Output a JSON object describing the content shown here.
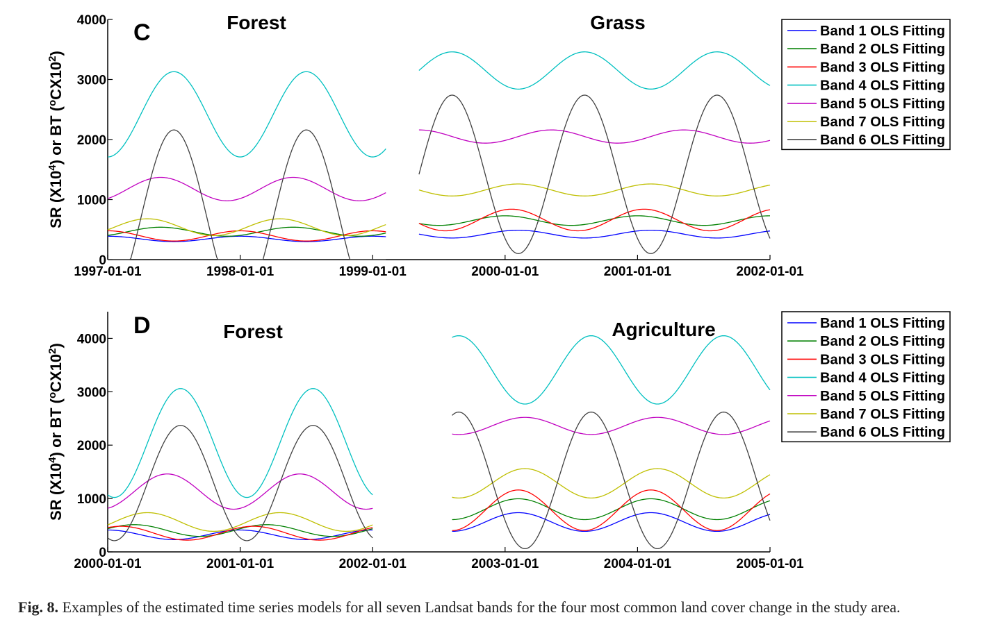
{
  "chart_data": [
    {
      "type": "line",
      "panel_label": "C",
      "ylabel_parts": [
        "SR (X10",
        "4",
        ") or BT (",
        "o",
        "CX10",
        "2",
        ")"
      ],
      "ylim": [
        0,
        4000
      ],
      "yticks": [
        0,
        1000,
        2000,
        3000,
        4000
      ],
      "xtick_labels": [
        "1997-01-01",
        "1998-01-01",
        "1999-01-01",
        "2000-01-01",
        "2001-01-01",
        "2002-01-01"
      ],
      "xlim": [
        1997.0,
        2002.0
      ],
      "segment_titles": [
        "Forest",
        "Grass"
      ],
      "legend": {
        "placement": "outside-right-top",
        "entries": [
          "Band 1 OLS Fitting",
          "Band 2 OLS Fitting",
          "Band 3 OLS Fitting",
          "Band 4 OLS Fitting",
          "Band 5 OLS Fitting",
          "Band 7 OLS Fitting",
          "Band 6 OLS Fitting"
        ]
      },
      "segments": [
        {
          "x_range": [
            1997.0,
            1999.1
          ],
          "series": [
            {
              "name": "Band 1 OLS Fitting",
              "color": "#0000ff",
              "mean": 345,
              "amp": 45,
              "phase": 1997.0
            },
            {
              "name": "Band 2 OLS Fitting",
              "color": "#008000",
              "mean": 465,
              "amp": 75,
              "phase": 1997.4
            },
            {
              "name": "Band 3 OLS Fitting",
              "color": "#ff0000",
              "mean": 395,
              "amp": 85,
              "phase": 1997.0
            },
            {
              "name": "Band 4 OLS Fitting",
              "color": "#00c0c0",
              "mean": 2420,
              "amp": 710,
              "phase": 1997.5
            },
            {
              "name": "Band 5 OLS Fitting",
              "color": "#c000c0",
              "mean": 1175,
              "amp": 195,
              "phase": 1997.4
            },
            {
              "name": "Band 7 OLS Fitting",
              "color": "#bfbf00",
              "mean": 540,
              "amp": 140,
              "phase": 1997.3
            },
            {
              "name": "Band 6 OLS Fitting",
              "color": "#404040",
              "mean": 690,
              "amp": 1470,
              "phase": 1997.5
            }
          ]
        },
        {
          "x_range": [
            1999.35,
            2002.0
          ],
          "series": [
            {
              "name": "Band 1 OLS Fitting",
              "color": "#0000ff",
              "mean": 425,
              "amp": 65,
              "phase": 2000.1
            },
            {
              "name": "Band 2 OLS Fitting",
              "color": "#008000",
              "mean": 650,
              "amp": 80,
              "phase": 2000.0
            },
            {
              "name": "Band 3 OLS Fitting",
              "color": "#ff0000",
              "mean": 660,
              "amp": 180,
              "phase": 2000.05
            },
            {
              "name": "Band 4 OLS Fitting",
              "color": "#00c0c0",
              "mean": 3150,
              "amp": 310,
              "phase": 1999.6
            },
            {
              "name": "Band 5 OLS Fitting",
              "color": "#c000c0",
              "mean": 2050,
              "amp": 110,
              "phase": 1999.35
            },
            {
              "name": "Band 7 OLS Fitting",
              "color": "#bfbf00",
              "mean": 1160,
              "amp": 100,
              "phase": 2000.1
            },
            {
              "name": "Band 6 OLS Fitting",
              "color": "#404040",
              "mean": 1420,
              "amp": 1320,
              "phase": 1999.6
            }
          ]
        }
      ]
    },
    {
      "type": "line",
      "panel_label": "D",
      "ylabel_parts": [
        "SR (X10",
        "4",
        ") or BT (",
        "o",
        "CX10",
        "2",
        ")"
      ],
      "ylim": [
        0,
        4500
      ],
      "yticks": [
        0,
        1000,
        2000,
        3000,
        4000
      ],
      "xtick_labels": [
        "2000-01-01",
        "2001-01-01",
        "2002-01-01",
        "2003-01-01",
        "2004-01-01",
        "2005-01-01"
      ],
      "xlim": [
        2000.0,
        2005.0
      ],
      "segment_titles": [
        "Forest",
        "Agriculture"
      ],
      "legend": {
        "placement": "outside-right-top",
        "entries": [
          "Band 1 OLS Fitting",
          "Band 2 OLS Fitting",
          "Band 3 OLS Fitting",
          "Band 4 OLS Fitting",
          "Band 5 OLS Fitting",
          "Band 7 OLS Fitting",
          "Band 6 OLS Fitting"
        ]
      },
      "segments": [
        {
          "x_range": [
            2000.0,
            2002.0
          ],
          "series": [
            {
              "name": "Band 1 OLS Fitting",
              "color": "#0000ff",
              "mean": 320,
              "amp": 90,
              "phase": 2000.0
            },
            {
              "name": "Band 2 OLS Fitting",
              "color": "#008000",
              "mean": 400,
              "amp": 110,
              "phase": 2000.2
            },
            {
              "name": "Band 3 OLS Fitting",
              "color": "#ff0000",
              "mean": 350,
              "amp": 130,
              "phase": 2000.1
            },
            {
              "name": "Band 4 OLS Fitting",
              "color": "#00c0c0",
              "mean": 2040,
              "amp": 1020,
              "phase": 2000.55
            },
            {
              "name": "Band 5 OLS Fitting",
              "color": "#c000c0",
              "mean": 1130,
              "amp": 330,
              "phase": 2000.45
            },
            {
              "name": "Band 7 OLS Fitting",
              "color": "#bfbf00",
              "mean": 560,
              "amp": 175,
              "phase": 2000.3
            },
            {
              "name": "Band 6 OLS Fitting",
              "color": "#404040",
              "mean": 1290,
              "amp": 1080,
              "phase": 2000.55
            }
          ]
        },
        {
          "x_range": [
            2002.6,
            2005.0
          ],
          "series": [
            {
              "name": "Band 1 OLS Fitting",
              "color": "#0000ff",
              "mean": 560,
              "amp": 175,
              "phase": 2003.1
            },
            {
              "name": "Band 2 OLS Fitting",
              "color": "#008000",
              "mean": 800,
              "amp": 195,
              "phase": 2003.1
            },
            {
              "name": "Band 3 OLS Fitting",
              "color": "#ff0000",
              "mean": 780,
              "amp": 380,
              "phase": 2003.1
            },
            {
              "name": "Band 4 OLS Fitting",
              "color": "#00c0c0",
              "mean": 3410,
              "amp": 640,
              "phase": 2003.65
            },
            {
              "name": "Band 5 OLS Fitting",
              "color": "#c000c0",
              "mean": 2360,
              "amp": 160,
              "phase": 2003.15
            },
            {
              "name": "Band 7 OLS Fitting",
              "color": "#bfbf00",
              "mean": 1285,
              "amp": 275,
              "phase": 2003.15
            },
            {
              "name": "Band 6 OLS Fitting",
              "color": "#404040",
              "mean": 1340,
              "amp": 1280,
              "phase": 2003.65
            }
          ]
        }
      ]
    }
  ],
  "caption": {
    "label": "Fig. 8.",
    "text": " Examples of the estimated time series models for all seven Landsat bands for the four most common land cover change in the study area."
  }
}
